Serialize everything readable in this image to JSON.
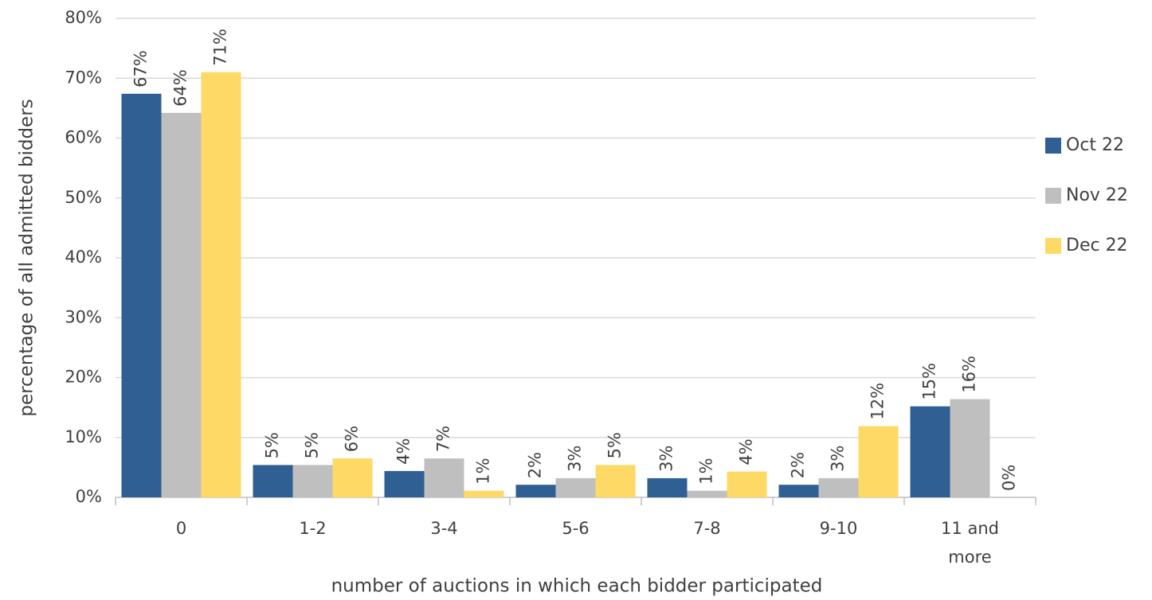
{
  "chart_data": {
    "type": "bar",
    "y_label": "percentage of all admitted bidders",
    "x_label": "number of auctions in which each bidder participated",
    "categories": [
      "0",
      "1-2",
      "3-4",
      "5-6",
      "7-8",
      "9-10",
      "11 and more"
    ],
    "series": [
      {
        "name": "Oct 22",
        "color": "#2f5f93",
        "values": [
          67.4,
          5.4,
          4.4,
          2.1,
          3.2,
          2.1,
          15.2
        ],
        "value_labels": [
          "67%",
          "5%",
          "4%",
          "2%",
          "3%",
          "2%",
          "15%"
        ]
      },
      {
        "name": "Nov 22",
        "color": "#bfbfbf",
        "values": [
          64.2,
          5.4,
          6.5,
          3.2,
          1.1,
          3.2,
          16.4
        ],
        "value_labels": [
          "64%",
          "5%",
          "7%",
          "3%",
          "1%",
          "3%",
          "16%"
        ]
      },
      {
        "name": "Dec 22",
        "color": "#ffd966",
        "values": [
          71,
          6.5,
          1.1,
          5.4,
          4.3,
          11.9,
          0
        ],
        "value_labels": [
          "71%",
          "6%",
          "1%",
          "5%",
          "4%",
          "12%",
          "0%"
        ]
      }
    ],
    "ylim": [
      0,
      80
    ],
    "yticks": [
      {
        "value": 0,
        "label": "0%"
      },
      {
        "value": 10,
        "label": "10%"
      },
      {
        "value": 20,
        "label": "20%"
      },
      {
        "value": 30,
        "label": "30%"
      },
      {
        "value": 40,
        "label": "40%"
      },
      {
        "value": 50,
        "label": "50%"
      },
      {
        "value": 60,
        "label": "60%"
      },
      {
        "value": 70,
        "label": "70%"
      },
      {
        "value": 80,
        "label": "80%"
      }
    ],
    "grid": true,
    "legend": "right"
  }
}
